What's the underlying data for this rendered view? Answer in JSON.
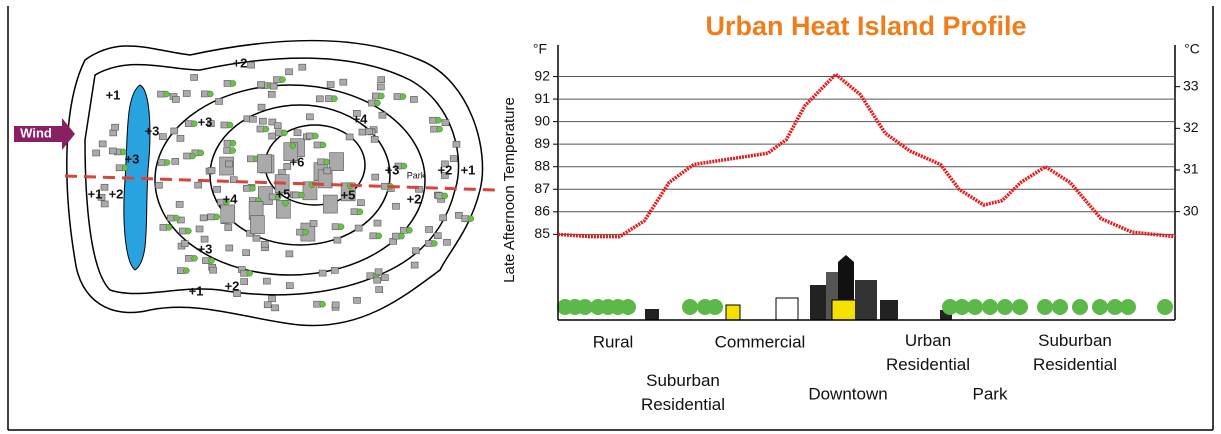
{
  "chart_data": {
    "type": "line",
    "title": "Urban Heat Island Profile",
    "y_label": "Late Afternoon Temperature",
    "y_unit": "°F",
    "y2_unit": "°C",
    "zones": [
      "Rural",
      "Suburban Residential",
      "Commercial",
      "Downtown",
      "Urban Residential",
      "Park",
      "Suburban Residential"
    ],
    "x": [
      0,
      5,
      10,
      14,
      18,
      22,
      28,
      34,
      37,
      40,
      45,
      49,
      53,
      57,
      62,
      65,
      69,
      72,
      75,
      79,
      83,
      88,
      93,
      100
    ],
    "series": [
      {
        "name": "Temperature",
        "color": "#e8191c",
        "values": [
          85.0,
          84.9,
          84.9,
          85.6,
          87.3,
          88.1,
          88.35,
          88.6,
          89.2,
          90.7,
          92.1,
          91.2,
          89.5,
          88.7,
          88.1,
          87.0,
          86.3,
          86.5,
          87.3,
          88.0,
          87.3,
          85.7,
          85.1,
          84.9
        ]
      }
    ],
    "xlim": [
      0,
      100
    ],
    "ylim": [
      81.2,
      93.4
    ],
    "yticks": [
      85,
      86,
      87,
      88,
      89,
      90,
      91,
      92
    ],
    "y2lim": [
      27.4,
      34.0
    ],
    "y2ticks": [
      30,
      31,
      32,
      33
    ],
    "grid": true,
    "map": {
      "wind_label": "Wind",
      "park_label": "Park",
      "isotherms": [
        "+1",
        "+3",
        "+3",
        "+2",
        "+3",
        "+4",
        "+6",
        "+5",
        "+4",
        "+3",
        "+2",
        "+1",
        "+2",
        "+1",
        "+2",
        "+3",
        "+2",
        "+1",
        "+5"
      ]
    }
  }
}
